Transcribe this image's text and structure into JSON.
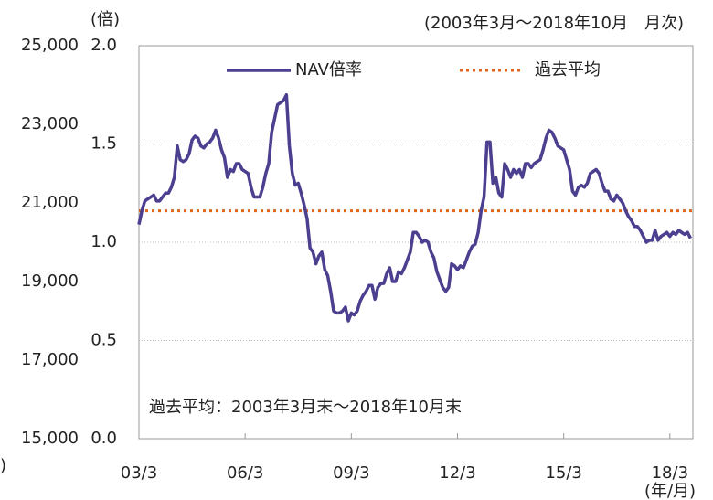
{
  "chart_data": {
    "type": "line",
    "y_label": "(倍)",
    "subtitle": "(2003年3月〜2018年10月　月次)",
    "y2_label": ")",
    "annotation": "過去平均：2003年3月末〜2018年10月末",
    "x_label": "(年/月)",
    "categories": [
      "03/3",
      null,
      null,
      null,
      null,
      null,
      null,
      null,
      null,
      null,
      null,
      null,
      null,
      null,
      null,
      null,
      null,
      null,
      null,
      null,
      null,
      null,
      null,
      null,
      null,
      null,
      null,
      null,
      null,
      null,
      null,
      null,
      null,
      null,
      null,
      null,
      "06/3",
      null,
      null,
      null,
      null,
      null,
      null,
      null,
      null,
      null,
      null,
      null,
      null,
      null,
      null,
      null,
      null,
      null,
      null,
      null,
      null,
      null,
      null,
      null,
      null,
      null,
      null,
      null,
      null,
      null,
      null,
      null,
      null,
      null,
      null,
      null,
      "09/3",
      null,
      null,
      null,
      null,
      null,
      null,
      null,
      null,
      null,
      null,
      null,
      null,
      null,
      null,
      null,
      null,
      null,
      null,
      null,
      null,
      null,
      null,
      null,
      null,
      null,
      null,
      null,
      null,
      null,
      null,
      null,
      null,
      null,
      null,
      null,
      "12/3",
      null,
      null,
      null,
      null,
      null,
      null,
      null,
      null,
      null,
      null,
      null,
      null,
      null,
      null,
      null,
      null,
      null,
      null,
      null,
      null,
      null,
      null,
      null,
      null,
      null,
      null,
      null,
      null,
      null,
      null,
      null,
      null,
      null,
      null,
      null,
      "15/3",
      null,
      null,
      null,
      null,
      null,
      null,
      null,
      null,
      null,
      null,
      null,
      null,
      null,
      null,
      null,
      null,
      null,
      null,
      null,
      null,
      null,
      null,
      null,
      null,
      null,
      null,
      null,
      null,
      null,
      null,
      null,
      null,
      null,
      null,
      null,
      "18/3",
      null,
      null,
      null,
      null,
      null,
      null,
      null
    ],
    "series": [
      {
        "name": "NAV倍率",
        "color": "#4b3f8f",
        "values": [
          1.09,
          1.16,
          1.21,
          1.22,
          1.23,
          1.24,
          1.21,
          1.21,
          1.23,
          1.25,
          1.25,
          1.28,
          1.33,
          1.49,
          1.42,
          1.41,
          1.42,
          1.45,
          1.52,
          1.54,
          1.53,
          1.49,
          1.48,
          1.5,
          1.51,
          1.53,
          1.57,
          1.53,
          1.47,
          1.43,
          1.33,
          1.37,
          1.36,
          1.4,
          1.4,
          1.37,
          1.36,
          1.35,
          1.28,
          1.23,
          1.23,
          1.23,
          1.28,
          1.35,
          1.4,
          1.56,
          1.63,
          1.7,
          1.71,
          1.72,
          1.75,
          1.49,
          1.35,
          1.29,
          1.3,
          1.25,
          1.19,
          1.12,
          0.97,
          0.95,
          0.89,
          0.93,
          0.95,
          0.86,
          0.83,
          0.75,
          0.65,
          0.64,
          0.64,
          0.65,
          0.67,
          0.6,
          0.64,
          0.63,
          0.65,
          0.7,
          0.73,
          0.75,
          0.78,
          0.78,
          0.71,
          0.77,
          0.79,
          0.79,
          0.84,
          0.87,
          0.8,
          0.8,
          0.85,
          0.84,
          0.87,
          0.91,
          0.95,
          1.05,
          1.05,
          1.03,
          1.0,
          1.01,
          1.0,
          0.95,
          0.92,
          0.85,
          0.81,
          0.77,
          0.75,
          0.77,
          0.89,
          0.88,
          0.86,
          0.88,
          0.87,
          0.91,
          0.95,
          0.98,
          0.99,
          1.05,
          1.16,
          1.23,
          1.51,
          1.51,
          1.3,
          1.33,
          1.25,
          1.23,
          1.4,
          1.37,
          1.33,
          1.37,
          1.35,
          1.37,
          1.33,
          1.4,
          1.4,
          1.38,
          1.4,
          1.41,
          1.42,
          1.47,
          1.53,
          1.57,
          1.56,
          1.53,
          1.49,
          1.48,
          1.47,
          1.42,
          1.37,
          1.26,
          1.24,
          1.28,
          1.29,
          1.28,
          1.3,
          1.35,
          1.36,
          1.37,
          1.35,
          1.3,
          1.26,
          1.26,
          1.22,
          1.21,
          1.24,
          1.22,
          1.2,
          1.16,
          1.13,
          1.11,
          1.08,
          1.08,
          1.06,
          1.03,
          1.0,
          1.01,
          1.01,
          1.06,
          1.01,
          1.03,
          1.04,
          1.05,
          1.03,
          1.05,
          1.04,
          1.06,
          1.05,
          1.04,
          1.05,
          1.02
        ]
      }
    ],
    "average": {
      "name": "過去平均",
      "value": 1.16,
      "color": "#e0661a",
      "style": "dotted"
    },
    "ylim": [
      0,
      2
    ],
    "yticks": [
      {
        "value": 0,
        "label": "0.0"
      },
      0.5,
      {
        "value": 1,
        "label": "1.0"
      },
      1.5,
      {
        "value": 2,
        "label": "2.0"
      }
    ],
    "y2lim": [
      15000,
      25000
    ],
    "y2ticks": [
      {
        "value": 15000,
        "label": "15,000"
      },
      {
        "value": 17000,
        "label": "17,000"
      },
      {
        "value": 19000,
        "label": "19,000"
      },
      {
        "value": 21000,
        "label": "21,000"
      },
      {
        "value": 23000,
        "label": "23,000"
      },
      {
        "value": 25000,
        "label": "25,000"
      }
    ],
    "grid": true,
    "legend": "top"
  }
}
